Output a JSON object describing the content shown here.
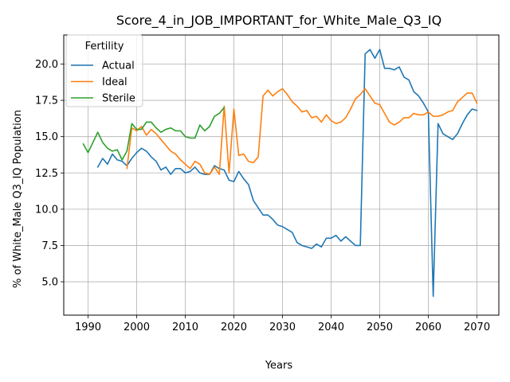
{
  "chart_data": {
    "type": "line",
    "title": "Score_4_in_JOB_IMPORTANT_for_White_Male_Q3_IQ",
    "xlabel": "Years",
    "ylabel": "% of White_Male Q3_IQ Population",
    "xlim": [
      1985.0,
      2074.5
    ],
    "ylim": [
      2.7,
      22.0
    ],
    "xticks": [
      1990,
      2000,
      2010,
      2020,
      2030,
      2040,
      2050,
      2060,
      2070
    ],
    "yticks": [
      5.0,
      7.5,
      10.0,
      12.5,
      15.0,
      17.5,
      20.0
    ],
    "yticklabels": [
      "5.0",
      "7.5",
      "10.0",
      "12.5",
      "15.0",
      "17.5",
      "20.0"
    ],
    "grid": true,
    "legend": {
      "title": "Fertility",
      "position": "top-left"
    },
    "series": [
      {
        "name": "Actual",
        "color": "#1f77b4",
        "x": [
          1992,
          1993,
          1994,
          1995,
          1996,
          1997,
          1998,
          1999,
          2000,
          2001,
          2002,
          2003,
          2004,
          2005,
          2006,
          2007,
          2008,
          2009,
          2010,
          2011,
          2012,
          2013,
          2014,
          2015,
          2016,
          2017,
          2018,
          2019,
          2020,
          2021,
          2022,
          2023,
          2024,
          2025,
          2026,
          2027,
          2028,
          2029,
          2030,
          2031,
          2032,
          2033,
          2034,
          2035,
          2036,
          2037,
          2038,
          2039,
          2040,
          2041,
          2042,
          2043,
          2044,
          2045,
          2046,
          2047,
          2048,
          2049,
          2050,
          2051,
          2052,
          2053,
          2054,
          2055,
          2056,
          2057,
          2058,
          2059,
          2060,
          2061,
          2062,
          2063,
          2064,
          2065,
          2066,
          2067,
          2068,
          2069,
          2070
        ],
        "values": [
          12.9,
          13.5,
          13.1,
          13.8,
          13.4,
          13.3,
          13.0,
          13.5,
          13.9,
          14.2,
          14.0,
          13.6,
          13.3,
          12.7,
          12.9,
          12.4,
          12.8,
          12.8,
          12.5,
          12.6,
          12.9,
          12.5,
          12.4,
          12.4,
          13.0,
          12.8,
          12.7,
          12.0,
          11.9,
          12.6,
          12.1,
          11.7,
          10.6,
          10.1,
          9.6,
          9.6,
          9.3,
          8.9,
          8.8,
          8.6,
          8.4,
          7.7,
          7.5,
          7.4,
          7.3,
          7.6,
          7.4,
          8.0,
          8.0,
          8.2,
          7.8,
          8.1,
          7.8,
          7.5,
          7.5,
          20.7,
          21.0,
          20.4,
          21.0,
          19.7,
          19.7,
          19.6,
          19.8,
          19.1,
          18.9,
          18.1,
          17.8,
          17.3,
          16.7,
          4.0,
          15.9,
          15.2,
          15.0,
          14.8,
          15.2,
          15.9,
          16.5,
          16.9,
          16.8
        ]
      },
      {
        "name": "Ideal",
        "color": "#ff7f0e",
        "x": [
          1998,
          1999,
          2000,
          2001,
          2002,
          2003,
          2004,
          2005,
          2006,
          2007,
          2008,
          2009,
          2010,
          2011,
          2012,
          2013,
          2014,
          2015,
          2016,
          2017,
          2018,
          2019,
          2020,
          2021,
          2022,
          2023,
          2024,
          2025,
          2026,
          2027,
          2028,
          2029,
          2030,
          2031,
          2032,
          2033,
          2034,
          2035,
          2036,
          2037,
          2038,
          2039,
          2040,
          2041,
          2042,
          2043,
          2044,
          2045,
          2046,
          2047,
          2048,
          2049,
          2050,
          2051,
          2052,
          2053,
          2054,
          2055,
          2056,
          2057,
          2058,
          2059,
          2060,
          2061,
          2062,
          2063,
          2064,
          2065,
          2066,
          2067,
          2068,
          2069,
          2070
        ],
        "values": [
          12.8,
          15.6,
          15.4,
          15.7,
          15.1,
          15.5,
          15.2,
          14.8,
          14.4,
          14.0,
          13.8,
          13.4,
          13.1,
          12.8,
          13.3,
          13.1,
          12.5,
          12.4,
          12.9,
          12.4,
          17.1,
          12.5,
          16.9,
          13.7,
          13.8,
          13.3,
          13.2,
          13.6,
          17.8,
          18.2,
          17.8,
          18.1,
          18.3,
          17.9,
          17.4,
          17.1,
          16.7,
          16.8,
          16.3,
          16.4,
          16.0,
          16.5,
          16.1,
          15.9,
          16.0,
          16.3,
          16.9,
          17.6,
          17.9,
          18.3,
          17.8,
          17.3,
          17.2,
          16.6,
          16.0,
          15.8,
          16.0,
          16.3,
          16.3,
          16.6,
          16.5,
          16.5,
          16.7,
          16.4,
          16.4,
          16.5,
          16.7,
          16.8,
          17.4,
          17.7,
          18.0,
          18.0,
          17.3
        ]
      },
      {
        "name": "Sterile",
        "color": "#2ca02c",
        "x": [
          1989,
          1990,
          1991,
          1992,
          1993,
          1994,
          1995,
          1996,
          1997,
          1998,
          1999,
          2000,
          2001,
          2002,
          2003,
          2004,
          2005,
          2006,
          2007,
          2008,
          2009,
          2010,
          2011,
          2012,
          2013,
          2014,
          2015,
          2016,
          2017,
          2018
        ],
        "values": [
          14.5,
          13.9,
          14.6,
          15.3,
          14.6,
          14.2,
          14.0,
          14.1,
          13.4,
          14.0,
          15.9,
          15.5,
          15.5,
          16.0,
          16.0,
          15.6,
          15.3,
          15.5,
          15.6,
          15.4,
          15.4,
          15.0,
          14.9,
          14.9,
          15.8,
          15.4,
          15.7,
          16.4,
          16.6,
          17.0
        ]
      }
    ]
  }
}
